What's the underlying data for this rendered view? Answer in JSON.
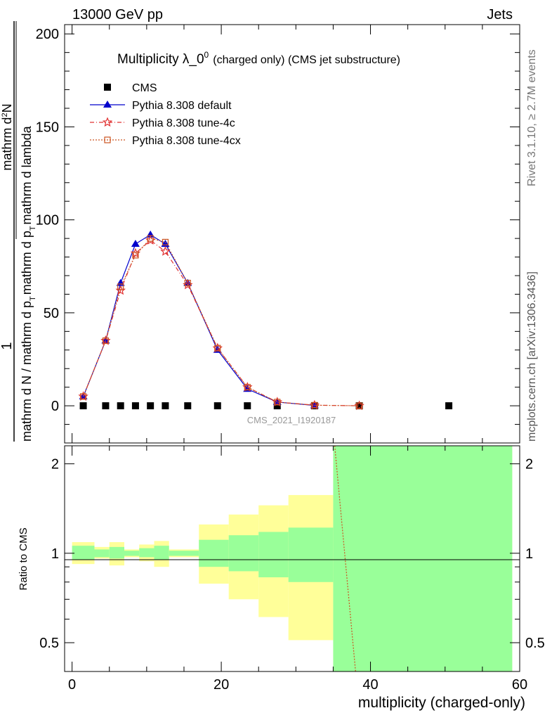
{
  "header": {
    "energy_label": "13000 GeV pp",
    "category_label": "Jets",
    "rivet_label": "Rivet 3.1.10, ≥ 2.7M events",
    "mcplots_label": "mcplots.cern.ch [arXiv:1306.3436]",
    "watermark": "CMS_2021_I1920187"
  },
  "legend": {
    "title_main": "Multiplicity λ_0",
    "title_sup": "0",
    "title_tail": "(charged only) (CMS jet substructure)",
    "position": "top-left"
  },
  "axes": {
    "ylabel_top_numerator": "1",
    "ylabel_top_denominator": "mathrm d N / mathrm d p",
    "ylabel_top_frac_num": "mathrm d",
    "ylabel_top_frac_num_sup": "2",
    "ylabel_top_frac_num_tail": "N",
    "ylabel_top_frac_den": "mathrm d p",
    "ylabel_top_frac_den_sub": "T",
    "ylabel_top_frac_den_tail": "mathrm d lambda",
    "ylabel_top_den_sub": "T",
    "ylabel_top_den_tail": "mathrm d p",
    "ylabel_top_den_sub2": "T",
    "ylabel_top_den_tail2": "mathrm d lambda",
    "ylabel_ratio": "Ratio to CMS",
    "xlabel": "multiplicity (charged-only)"
  },
  "colors": {
    "cms": "#000000",
    "default": "#0000cc",
    "tune4c": "#e03030",
    "tune4cx": "#cc5522",
    "band_green": "#99ff99",
    "band_yellow": "#ffff99"
  },
  "chart_data": {
    "type": "line",
    "xlim": [
      -1,
      60
    ],
    "ylim": [
      -20,
      205
    ],
    "yticks": [
      0,
      50,
      100,
      150,
      200
    ],
    "xticks": [
      0,
      20,
      40,
      60
    ],
    "ratio_ylim": [
      0.4,
      2.3
    ],
    "ratio_ticks": [
      0.5,
      1,
      2
    ],
    "series": [
      {
        "name": "CMS",
        "marker": "square",
        "x": [
          1.5,
          4.5,
          6.5,
          8.5,
          10.5,
          12.5,
          15.5,
          19.5,
          23.5,
          27.5,
          32.5,
          38.5,
          50.5
        ],
        "values": [
          0,
          0,
          0,
          0,
          0,
          0,
          0,
          0,
          0,
          0,
          0,
          0,
          0
        ]
      },
      {
        "name": "Pythia 8.308 default",
        "marker": "triangle",
        "line": "solid",
        "x": [
          1.5,
          4.5,
          6.5,
          8.5,
          10.5,
          12.5,
          15.5,
          19.5,
          23.5,
          27.5,
          32.5
        ],
        "values": [
          5,
          35,
          66,
          87,
          92,
          87,
          66,
          30,
          9,
          2,
          0.2
        ]
      },
      {
        "name": "Pythia 8.308 tune-4c",
        "marker": "star",
        "line": "dashdot",
        "x": [
          1.5,
          4.5,
          6.5,
          8.5,
          10.5,
          12.5,
          15.5,
          19.5,
          23.5,
          27.5,
          32.5,
          38.5
        ],
        "values": [
          5,
          35,
          62,
          82,
          89,
          83,
          65,
          31,
          10,
          2,
          0.3,
          0
        ]
      },
      {
        "name": "Pythia 8.308 tune-4cx",
        "marker": "open-square",
        "line": "dotted",
        "x": [
          1.5,
          4.5,
          6.5,
          8.5,
          10.5,
          12.5,
          15.5,
          19.5,
          23.5,
          27.5,
          32.5,
          38.5
        ],
        "values": [
          5,
          35,
          64,
          81,
          90,
          88,
          66,
          31,
          10,
          2,
          0.3,
          0
        ]
      }
    ],
    "ratio_bands": [
      {
        "x0": 0,
        "x1": 3,
        "g_lo": 0.95,
        "g_hi": 1.06,
        "y_lo": 0.92,
        "y_hi": 1.09
      },
      {
        "x0": 3,
        "x1": 5,
        "g_lo": 0.97,
        "g_hi": 1.03,
        "y_lo": 0.96,
        "y_hi": 1.05
      },
      {
        "x0": 5,
        "x1": 7,
        "g_lo": 0.96,
        "g_hi": 1.05,
        "y_lo": 0.91,
        "y_hi": 1.09
      },
      {
        "x0": 7,
        "x1": 9,
        "g_lo": 0.98,
        "g_hi": 1.02,
        "y_lo": 0.97,
        "y_hi": 1.03
      },
      {
        "x0": 9,
        "x1": 11,
        "g_lo": 0.97,
        "g_hi": 1.04,
        "y_lo": 0.94,
        "y_hi": 1.07
      },
      {
        "x0": 11,
        "x1": 13,
        "g_lo": 0.95,
        "g_hi": 1.06,
        "y_lo": 0.9,
        "y_hi": 1.1
      },
      {
        "x0": 13,
        "x1": 17,
        "g_lo": 0.98,
        "g_hi": 1.02,
        "y_lo": 0.97,
        "y_hi": 1.03
      },
      {
        "x0": 17,
        "x1": 21,
        "g_lo": 0.9,
        "g_hi": 1.11,
        "y_lo": 0.79,
        "y_hi": 1.25
      },
      {
        "x0": 21,
        "x1": 25,
        "g_lo": 0.87,
        "g_hi": 1.15,
        "y_lo": 0.7,
        "y_hi": 1.35
      },
      {
        "x0": 25,
        "x1": 29,
        "g_lo": 0.83,
        "g_hi": 1.18,
        "y_lo": 0.61,
        "y_hi": 1.45
      },
      {
        "x0": 29,
        "x1": 35,
        "g_lo": 0.8,
        "g_hi": 1.22,
        "y_lo": 0.51,
        "y_hi": 1.57
      },
      {
        "x0": 35,
        "x1": 59,
        "g_lo": 0.36,
        "g_hi": 2.3,
        "y_lo": 0.36,
        "y_hi": 2.3
      }
    ],
    "ratio_curve": {
      "name": "Pythia 8.308 tune-4cx",
      "x": [
        35.2,
        38.0
      ],
      "values": [
        2.3,
        0.4
      ]
    }
  }
}
